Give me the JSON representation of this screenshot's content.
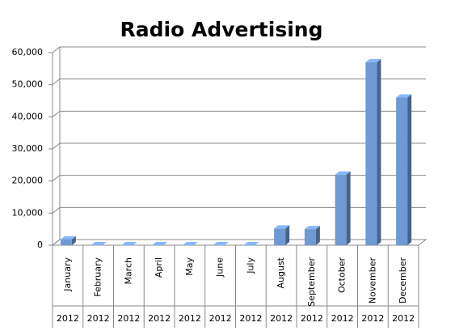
{
  "chart_data": {
    "type": "bar3d",
    "title": "Radio Advertising",
    "categories": [
      "January",
      "February",
      "March",
      "April",
      "May",
      "June",
      "July",
      "August",
      "September",
      "October",
      "November",
      "December"
    ],
    "category_groups": [
      "2012",
      "2012",
      "2012",
      "2012",
      "2012",
      "2012",
      "2012",
      "2012",
      "2012",
      "2012",
      "2012",
      "2012"
    ],
    "values": [
      1800,
      0,
      0,
      0,
      0,
      0,
      0,
      5200,
      5000,
      22000,
      57000,
      46000
    ],
    "color": "#6f99d3",
    "ylim": [
      0,
      60000
    ],
    "yticks": [
      0,
      {
        "value": 10000,
        "label": "10,000"
      },
      {
        "value": 20000,
        "label": "20,000"
      },
      {
        "value": 30000,
        "label": "30,000"
      },
      {
        "value": 40000,
        "label": "40,000"
      },
      {
        "value": 50000,
        "label": "50,000"
      },
      {
        "value": 60000,
        "label": "60,000"
      }
    ],
    "grid": true
  }
}
